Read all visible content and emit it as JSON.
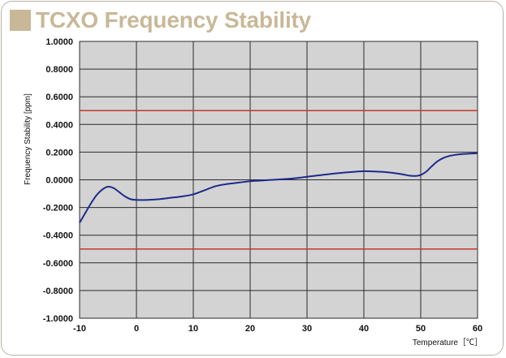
{
  "title": "TCXO Frequency Stability",
  "colors": {
    "title": "#c9b898",
    "plot_bg": "#d3d3d3",
    "grid": "#2b2b2b",
    "curve": "#1e2a8a",
    "limit": "#c0392b",
    "card_border": "#b7b2a3"
  },
  "chart_data": {
    "type": "line",
    "title": "TCXO Frequency Stability",
    "xlabel": "Temperature［℃］",
    "ylabel": "Frequency Stability [ppm]",
    "xlim": [
      -10,
      60
    ],
    "ylim": [
      -1.0,
      1.0
    ],
    "x_ticks": [
      "-10",
      "0",
      "10",
      "20",
      "30",
      "40",
      "50",
      "60"
    ],
    "y_ticks": [
      "1.0000",
      "0.8000",
      "0.6000",
      "0.4000",
      "0.2000",
      "0.0000",
      "-0.2000",
      "-0.4000",
      "-0.6000",
      "-0.8000",
      "-1.0000"
    ],
    "grid": true,
    "series": [
      {
        "x": [
          -10,
          -9,
          -8,
          -7,
          -6,
          -5,
          -4,
          -3,
          -2,
          -1,
          0,
          2,
          4,
          6,
          8,
          10,
          12,
          14,
          16,
          18,
          20,
          22,
          24,
          26,
          28,
          30,
          32,
          34,
          36,
          38,
          40,
          42,
          44,
          46,
          47,
          48,
          49,
          50,
          51,
          52,
          53,
          54,
          55,
          56,
          57,
          58,
          59,
          60
        ],
        "y": [
          -0.31,
          -0.24,
          -0.17,
          -0.11,
          -0.07,
          -0.05,
          -0.06,
          -0.09,
          -0.12,
          -0.14,
          -0.145,
          -0.145,
          -0.14,
          -0.13,
          -0.12,
          -0.105,
          -0.075,
          -0.045,
          -0.03,
          -0.02,
          -0.01,
          -0.005,
          0.0,
          0.005,
          0.012,
          0.022,
          0.032,
          0.042,
          0.05,
          0.057,
          0.062,
          0.06,
          0.055,
          0.045,
          0.038,
          0.03,
          0.028,
          0.035,
          0.06,
          0.1,
          0.135,
          0.158,
          0.172,
          0.18,
          0.185,
          0.188,
          0.19,
          0.192
        ]
      }
    ],
    "reference_lines": [
      0.5,
      -0.5
    ]
  }
}
